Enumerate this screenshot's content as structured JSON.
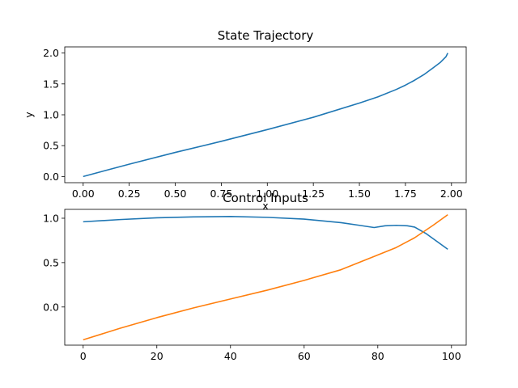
{
  "chart_data": [
    {
      "type": "line",
      "title": "State Trajectory",
      "xlabel": "x",
      "ylabel": "y",
      "xlim": [
        -0.1,
        2.08
      ],
      "ylim": [
        -0.1,
        2.1
      ],
      "xticks": [
        0.0,
        0.25,
        0.5,
        0.75,
        1.0,
        1.25,
        1.5,
        1.75,
        2.0
      ],
      "xtick_labels": [
        "0.00",
        "0.25",
        "0.50",
        "0.75",
        "1.00",
        "1.25",
        "1.50",
        "1.75",
        "2.00"
      ],
      "yticks": [
        0.0,
        0.5,
        1.0,
        1.5,
        2.0
      ],
      "ytick_labels": [
        "0.0",
        "0.5",
        "1.0",
        "1.5",
        "2.0"
      ],
      "grid": false,
      "series": [
        {
          "color": "#1f77b4",
          "x": [
            0.0,
            0.1,
            0.25,
            0.5,
            0.75,
            1.0,
            1.25,
            1.5,
            1.6,
            1.7,
            1.75,
            1.8,
            1.85,
            1.9,
            1.94,
            1.97,
            1.98
          ],
          "y": [
            0.0,
            0.08,
            0.2,
            0.39,
            0.57,
            0.76,
            0.96,
            1.19,
            1.29,
            1.41,
            1.48,
            1.56,
            1.65,
            1.76,
            1.85,
            1.94,
            2.0
          ]
        }
      ]
    },
    {
      "type": "line",
      "title": "Control Inputs",
      "xlim": [
        -5,
        104
      ],
      "ylim": [
        -0.43,
        1.1
      ],
      "xticks": [
        0,
        20,
        40,
        60,
        80,
        100
      ],
      "xtick_labels": [
        "0",
        "20",
        "40",
        "60",
        "80",
        "100"
      ],
      "yticks": [
        0.0,
        0.5,
        1.0
      ],
      "ytick_labels": [
        "0.0",
        "0.5",
        "1.0"
      ],
      "grid": false,
      "series": [
        {
          "color": "#1f77b4",
          "x": [
            0,
            10,
            20,
            30,
            40,
            50,
            60,
            70,
            75,
            79,
            82,
            85,
            88,
            90,
            93,
            96,
            99
          ],
          "y": [
            0.96,
            0.985,
            1.005,
            1.015,
            1.02,
            1.01,
            0.99,
            0.95,
            0.92,
            0.895,
            0.915,
            0.92,
            0.915,
            0.9,
            0.83,
            0.74,
            0.65
          ]
        },
        {
          "color": "#ff7f0e",
          "x": [
            0,
            10,
            20,
            30,
            40,
            50,
            60,
            70,
            79,
            85,
            90,
            95,
            99
          ],
          "y": [
            -0.37,
            -0.24,
            -0.12,
            -0.01,
            0.09,
            0.19,
            0.3,
            0.42,
            0.57,
            0.67,
            0.78,
            0.92,
            1.04
          ]
        }
      ]
    }
  ]
}
